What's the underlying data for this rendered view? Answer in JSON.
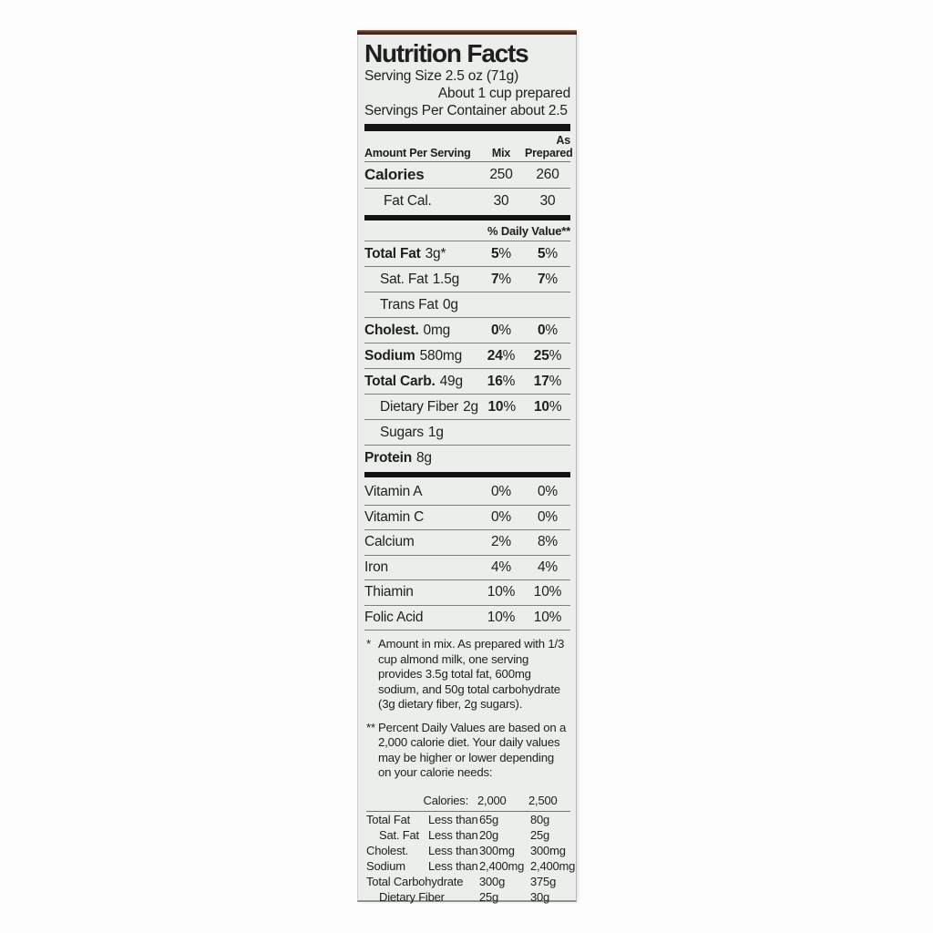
{
  "colors": {
    "box_edge_brown": "#5a2a1c",
    "panel_bg": "#eceeeb",
    "text": "#1e1f1e"
  },
  "label": {
    "title": "Nutrition Facts",
    "serving_size": "Serving Size 2.5 oz (71g)",
    "serving_prepared": "About 1 cup prepared",
    "servings_per_container": "Servings Per Container about 2.5",
    "columns": {
      "amount_per_serving": "Amount Per Serving",
      "mix": "Mix",
      "as_line1": "As",
      "as_line2": "Prepared"
    },
    "calories_rows": [
      {
        "name": "Calories",
        "amount": "",
        "mix": "250",
        "prep": "260"
      },
      {
        "name": "Fat Cal.",
        "amount": "",
        "mix": "30",
        "prep": "30"
      }
    ],
    "daily_value_heading": "% Daily Value**",
    "nutrients": [
      {
        "name": "Total Fat",
        "amount": "3g*",
        "mix": "5%",
        "prep": "5%"
      },
      {
        "name": "Sat. Fat",
        "amount": "1.5g",
        "mix": "7%",
        "prep": "7%"
      },
      {
        "name": "Trans Fat",
        "amount": "0g",
        "mix": "",
        "prep": ""
      },
      {
        "name": "Cholest.",
        "amount": "0mg",
        "mix": "0%",
        "prep": "0%"
      },
      {
        "name": "Sodium",
        "amount": "580mg",
        "mix": "24%",
        "prep": "25%"
      },
      {
        "name": "Total Carb.",
        "amount": "49g",
        "mix": "16%",
        "prep": "17%"
      },
      {
        "name": "Dietary Fiber",
        "amount": "2g",
        "mix": "10%",
        "prep": "10%"
      },
      {
        "name": "Sugars",
        "amount": "1g",
        "mix": "",
        "prep": ""
      },
      {
        "name": "Protein",
        "amount": "8g",
        "mix": "",
        "prep": ""
      }
    ],
    "vitamins": [
      {
        "name": "Vitamin A",
        "mix": "0%",
        "prep": "0%"
      },
      {
        "name": "Vitamin C",
        "mix": "0%",
        "prep": "0%"
      },
      {
        "name": "Calcium",
        "mix": "2%",
        "prep": "8%"
      },
      {
        "name": "Iron",
        "mix": "4%",
        "prep": "4%"
      },
      {
        "name": "Thiamin",
        "mix": "10%",
        "prep": "10%"
      },
      {
        "name": "Folic Acid",
        "mix": "10%",
        "prep": "10%"
      }
    ],
    "footnote1_marker": "*",
    "footnote1": "Amount in mix. As prepared with 1/3 cup almond milk, one serving provides 3.5g total fat, 600mg sodium, and 50g total carbohydrate (3g dietary fiber, 2g sugars).",
    "footnote2_marker": "**",
    "footnote2": "Percent Daily Values are based on a 2,000 calorie diet. Your daily values may be higher or lower depending on your calorie needs:",
    "dv_table": {
      "header": {
        "label": "Calories:",
        "c1": "2,000",
        "c2": "2,500"
      },
      "rows": [
        {
          "name": "Total Fat",
          "qual": "Less than",
          "c1": "65g",
          "c2": "80g"
        },
        {
          "name": "Sat. Fat",
          "qual": "Less than",
          "c1": "20g",
          "c2": "25g"
        },
        {
          "name": "Cholest.",
          "qual": "Less than",
          "c1": "300mg",
          "c2": "300mg"
        },
        {
          "name": "Sodium",
          "qual": "Less than",
          "c1": "2,400mg",
          "c2": "2,400mg"
        },
        {
          "name": "Total Carbohydrate",
          "qual": "",
          "c1": "300g",
          "c2": "375g"
        },
        {
          "name": "Dietary Fiber",
          "qual": "",
          "c1": "25g",
          "c2": "30g"
        }
      ]
    }
  }
}
